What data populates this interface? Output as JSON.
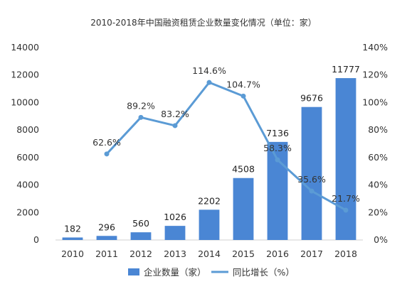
{
  "chart_data": {
    "type": "bar+line",
    "title": "2010-2018年中国融资租赁企业数量变化情况（单位：家）",
    "categories": [
      "2010",
      "2011",
      "2012",
      "2013",
      "2014",
      "2015",
      "2016",
      "2017",
      "2018"
    ],
    "series": [
      {
        "name": "企业数量（家）",
        "type": "bar",
        "axis": "left",
        "values": [
          182,
          296,
          560,
          1026,
          2202,
          4508,
          7136,
          9676,
          11777
        ],
        "labels": [
          "182",
          "296",
          "560",
          "1026",
          "2202",
          "4508",
          "7136",
          "9676",
          "11777"
        ]
      },
      {
        "name": "同比增长（%）",
        "type": "line",
        "axis": "right",
        "values": [
          null,
          62.6,
          89.2,
          83.2,
          114.6,
          104.7,
          58.3,
          35.6,
          21.7
        ],
        "labels": [
          "",
          "62.6%",
          "89.2%",
          "83.2%",
          "114.6%",
          "104.7%",
          "58.3%",
          "35.6%",
          "21.7%"
        ]
      }
    ],
    "yleft": {
      "min": 0,
      "max": 14000,
      "ticks": [
        "0",
        "2000",
        "4000",
        "6000",
        "8000",
        "10000",
        "12000",
        "14000"
      ]
    },
    "yright": {
      "min": 0,
      "max": 140,
      "ticks": [
        "0%",
        "20%",
        "40%",
        "60%",
        "80%",
        "100%",
        "120%",
        "140%"
      ]
    },
    "grid": false,
    "legend_position": "bottom",
    "colors": {
      "bar": "#4a86d4",
      "line": "#5b9bd5",
      "text": "#333333"
    }
  }
}
